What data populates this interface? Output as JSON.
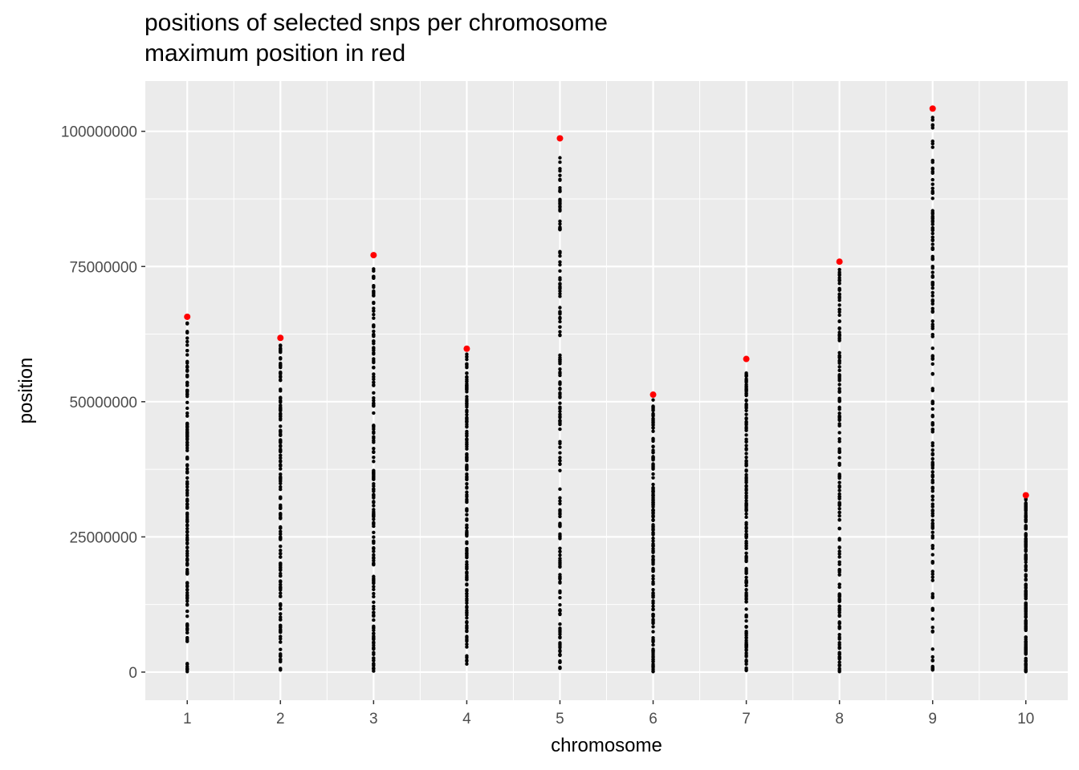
{
  "chart_data": {
    "type": "scatter",
    "title": "positions of selected snps per chromosome",
    "subtitle": "maximum position in red",
    "xlabel": "chromosome",
    "ylabel": "position",
    "x_ticks": [
      "1",
      "2",
      "3",
      "4",
      "5",
      "6",
      "7",
      "8",
      "9",
      "10"
    ],
    "y_ticks": [
      "0",
      "25000000",
      "50000000",
      "75000000",
      "100000000"
    ],
    "y_tick_values": [
      0,
      25000000,
      50000000,
      75000000,
      100000000
    ],
    "ylim": [
      -5200000,
      109300000
    ],
    "xlim": [
      0.55,
      10.45
    ],
    "grid": true,
    "colors": {
      "points": "#000000",
      "max_points": "#ff0000",
      "panel": "#ebebeb",
      "grid": "#ffffff"
    },
    "series": [
      {
        "chromosome": 1,
        "min": 100000,
        "max": 65700000
      },
      {
        "chromosome": 2,
        "min": 400000,
        "max": 61800000
      },
      {
        "chromosome": 3,
        "min": 200000,
        "max": 77100000
      },
      {
        "chromosome": 4,
        "min": 1500000,
        "max": 59800000
      },
      {
        "chromosome": 5,
        "min": 700000,
        "max": 98700000
      },
      {
        "chromosome": 6,
        "min": 100000,
        "max": 51300000
      },
      {
        "chromosome": 7,
        "min": 300000,
        "max": 57900000
      },
      {
        "chromosome": 8,
        "min": 100000,
        "max": 75900000
      },
      {
        "chromosome": 9,
        "min": 400000,
        "max": 104200000
      },
      {
        "chromosome": 10,
        "min": 100000,
        "max": 32700000
      }
    ]
  }
}
